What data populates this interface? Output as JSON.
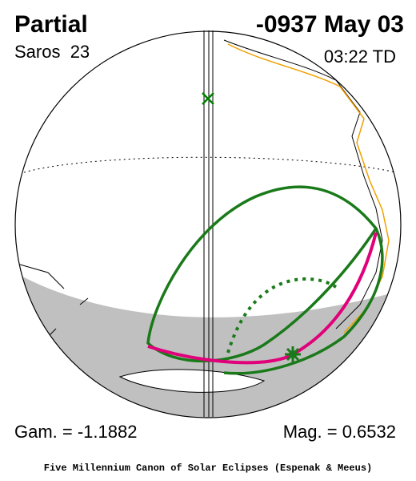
{
  "header": {
    "type": "Partial",
    "date": "-0937 May 03",
    "saros": "Saros  23",
    "time": "03:22 TD"
  },
  "footer": {
    "gamma": "Gam. = -1.1882",
    "magnitude": "Mag. = 0.6532",
    "credit": "Five Millennium Canon of Solar Eclipses (Espenak & Meeus)"
  }
}
